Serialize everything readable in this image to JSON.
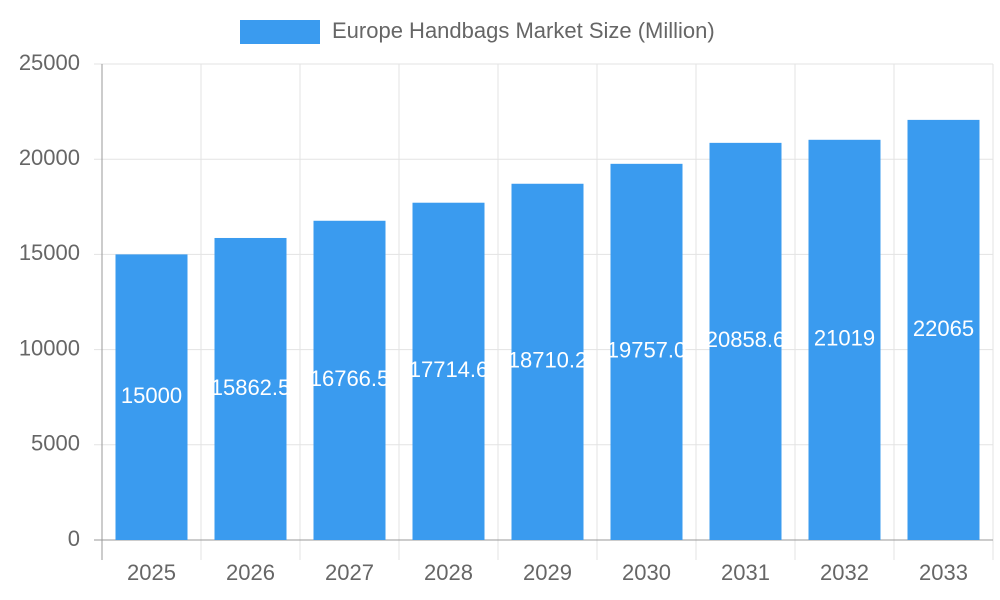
{
  "chart_data": {
    "type": "bar",
    "series": [
      {
        "name": "Europe Handbags Market Size (Million)",
        "color": "#3a9bef",
        "values": [
          15000,
          15862.5,
          16766.5,
          17714.6,
          18710.2,
          19757.0,
          20858.6,
          21019,
          22065
        ],
        "value_labels": [
          "15000",
          "15862.5",
          "16766.5",
          "17714.6",
          "18710.2",
          "19757.0",
          "20858.6",
          "21019",
          "22065"
        ]
      }
    ],
    "categories": [
      "2025",
      "2026",
      "2027",
      "2028",
      "2029",
      "2030",
      "2031",
      "2032",
      "2033"
    ],
    "ylim": [
      0,
      25000
    ],
    "yticks": [
      0,
      5000,
      10000,
      15000,
      20000,
      25000
    ],
    "grid": true
  }
}
